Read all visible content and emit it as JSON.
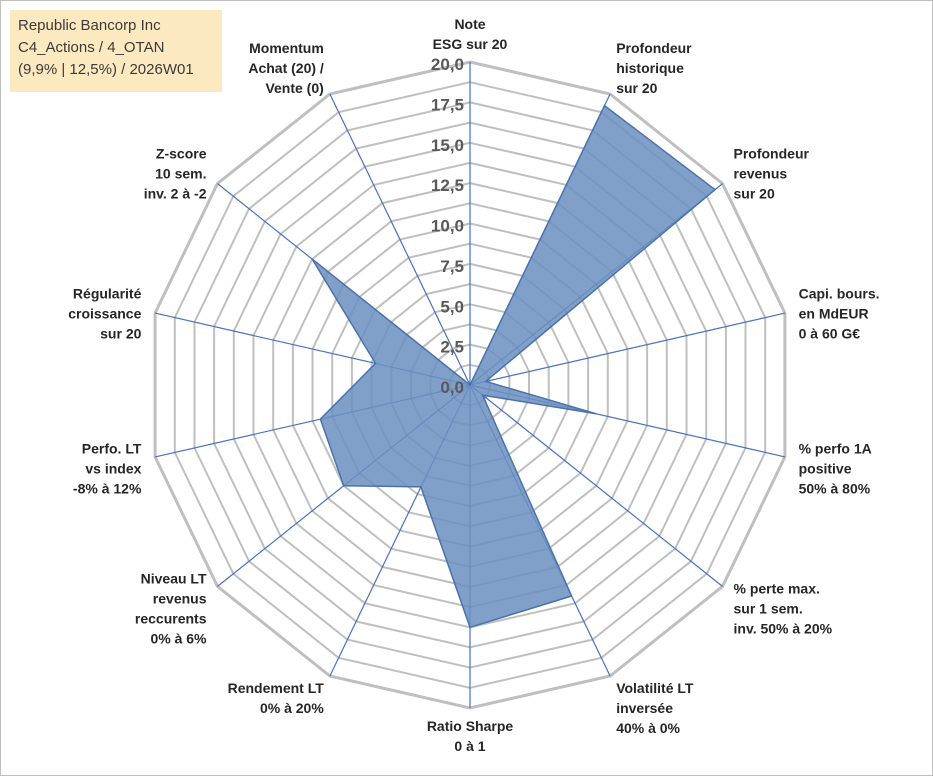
{
  "info_box": {
    "line1": "Republic Bancorp Inc",
    "line2": "C4_Actions / 4_OTAN",
    "line3": "(9,9% | 12,5%) / 2026W01"
  },
  "chart_data": {
    "type": "radar",
    "title": "",
    "axes": [
      [
        "Note",
        "ESG sur 20"
      ],
      [
        "Profondeur",
        "historique",
        "sur 20"
      ],
      [
        "Profondeur",
        "revenus",
        "sur 20"
      ],
      [
        "Capi. bours.",
        "en MdEUR",
        "0 à 60 G€"
      ],
      [
        "% perfo 1A",
        "positive",
        "50% à 80%"
      ],
      [
        "% perte max.",
        "sur 1 sem.",
        "inv. 50% à 20%"
      ],
      [
        "Volatilité LT",
        "inversée",
        "40% à 0%"
      ],
      [
        "Ratio Sharpe",
        "0 à 1"
      ],
      [
        "Rendement LT",
        "0% à 20%"
      ],
      [
        "Niveau LT",
        "revenus",
        "reccurents",
        "0% à 6%"
      ],
      [
        "Perfo. LT",
        "vs index",
        "-8% à 12%"
      ],
      [
        "Régularité",
        "croissance",
        "sur 20"
      ],
      [
        "Z-score",
        "10 sem.",
        "inv. 2 à -2"
      ],
      [
        "Momentum",
        "Achat (20) /",
        "Vente (0)"
      ]
    ],
    "values": [
      0,
      19.2,
      19.4,
      1.0,
      8.0,
      1.0,
      14.5,
      15.0,
      7.0,
      10.0,
      9.5,
      6.0,
      12.5,
      0
    ],
    "r_ticks": [
      "0,0",
      "2,5",
      "5,0",
      "7,5",
      "10,0",
      "12,5",
      "15,0",
      "17,5",
      "20,0"
    ],
    "r_range": [
      0,
      20
    ],
    "grid": true,
    "series_color": "#6b8fbf",
    "series_edge": "#4a72ad",
    "spoke_color": "#4472c4",
    "grid_color": "#bfbfbf"
  }
}
